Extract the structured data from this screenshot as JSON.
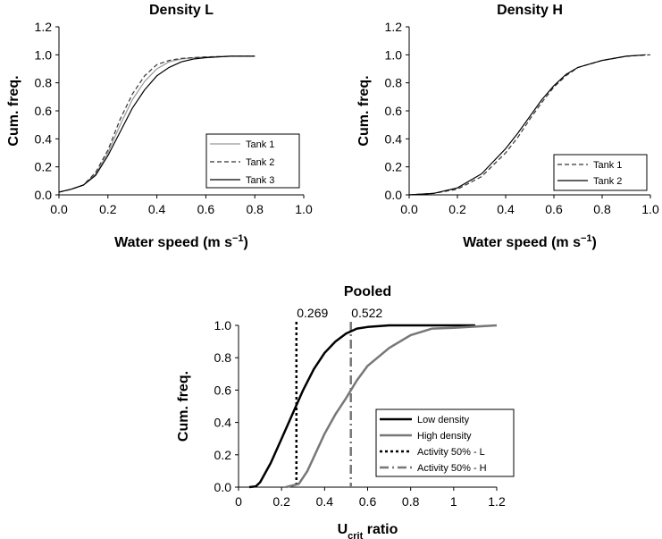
{
  "chart_data": [
    {
      "type": "line",
      "title": "Density L",
      "xlabel": "Water speed (m s",
      "xlabel_sup": "−1",
      "xlabel_end": ")",
      "ylabel": "Cum. freq.",
      "xlim": [
        0,
        1.0
      ],
      "ylim": [
        0,
        1.2
      ],
      "xticks": [
        "0.0",
        "0.2",
        "0.4",
        "0.6",
        "0.8",
        "1.0"
      ],
      "yticks": [
        "0.0",
        "0.2",
        "0.4",
        "0.6",
        "0.8",
        "1.0",
        "1.2"
      ],
      "legend_position": "bottom-right",
      "grid": false,
      "series": [
        {
          "name": "Tank 1",
          "color": "#999999",
          "dash": "none",
          "width": 1.2,
          "points": [
            [
              0,
              0.02
            ],
            [
              0.05,
              0.04
            ],
            [
              0.1,
              0.07
            ],
            [
              0.15,
              0.15
            ],
            [
              0.2,
              0.3
            ],
            [
              0.25,
              0.5
            ],
            [
              0.3,
              0.68
            ],
            [
              0.35,
              0.81
            ],
            [
              0.4,
              0.9
            ],
            [
              0.45,
              0.95
            ],
            [
              0.5,
              0.97
            ],
            [
              0.55,
              0.98
            ],
            [
              0.6,
              0.985
            ],
            [
              0.7,
              0.99
            ],
            [
              0.8,
              0.99
            ]
          ]
        },
        {
          "name": "Tank 2",
          "color": "#333333",
          "dash": "5,3",
          "width": 1.2,
          "points": [
            [
              0,
              0.02
            ],
            [
              0.05,
              0.04
            ],
            [
              0.1,
              0.07
            ],
            [
              0.15,
              0.16
            ],
            [
              0.2,
              0.32
            ],
            [
              0.25,
              0.54
            ],
            [
              0.3,
              0.72
            ],
            [
              0.35,
              0.85
            ],
            [
              0.4,
              0.93
            ],
            [
              0.45,
              0.96
            ],
            [
              0.5,
              0.975
            ],
            [
              0.55,
              0.98
            ],
            [
              0.6,
              0.985
            ],
            [
              0.7,
              0.99
            ],
            [
              0.8,
              0.99
            ]
          ]
        },
        {
          "name": "Tank 3",
          "color": "#000000",
          "dash": "none",
          "width": 1.2,
          "points": [
            [
              0,
              0.02
            ],
            [
              0.05,
              0.04
            ],
            [
              0.1,
              0.07
            ],
            [
              0.15,
              0.14
            ],
            [
              0.2,
              0.28
            ],
            [
              0.25,
              0.45
            ],
            [
              0.3,
              0.62
            ],
            [
              0.35,
              0.75
            ],
            [
              0.4,
              0.85
            ],
            [
              0.45,
              0.91
            ],
            [
              0.5,
              0.95
            ],
            [
              0.55,
              0.97
            ],
            [
              0.6,
              0.98
            ],
            [
              0.7,
              0.99
            ],
            [
              0.8,
              0.99
            ]
          ]
        }
      ]
    },
    {
      "type": "line",
      "title": "Density H",
      "xlabel": "Water speed (m s",
      "xlabel_sup": "−1",
      "xlabel_end": ")",
      "ylabel": "Cum. freq.",
      "xlim": [
        0,
        1.0
      ],
      "ylim": [
        0,
        1.2
      ],
      "xticks": [
        "0.0",
        "0.2",
        "0.4",
        "0.6",
        "0.8",
        "1.0"
      ],
      "yticks": [
        "0.0",
        "0.2",
        "0.4",
        "0.6",
        "0.8",
        "1.0",
        "1.2"
      ],
      "legend_position": "bottom-right",
      "grid": false,
      "series": [
        {
          "name": "Tank 1",
          "color": "#333333",
          "dash": "5,3",
          "width": 1.2,
          "points": [
            [
              0,
              0.0
            ],
            [
              0.1,
              0.01
            ],
            [
              0.2,
              0.04
            ],
            [
              0.3,
              0.13
            ],
            [
              0.4,
              0.3
            ],
            [
              0.45,
              0.41
            ],
            [
              0.5,
              0.54
            ],
            [
              0.55,
              0.66
            ],
            [
              0.6,
              0.77
            ],
            [
              0.65,
              0.85
            ],
            [
              0.7,
              0.91
            ],
            [
              0.8,
              0.96
            ],
            [
              0.9,
              0.99
            ],
            [
              1.0,
              1.0
            ]
          ]
        },
        {
          "name": "Tank 2",
          "color": "#000000",
          "dash": "none",
          "width": 1.2,
          "points": [
            [
              0,
              0.0
            ],
            [
              0.1,
              0.01
            ],
            [
              0.2,
              0.05
            ],
            [
              0.3,
              0.15
            ],
            [
              0.4,
              0.33
            ],
            [
              0.45,
              0.44
            ],
            [
              0.5,
              0.56
            ],
            [
              0.55,
              0.68
            ],
            [
              0.6,
              0.78
            ],
            [
              0.65,
              0.86
            ],
            [
              0.7,
              0.91
            ],
            [
              0.8,
              0.96
            ],
            [
              0.9,
              0.99
            ],
            [
              0.98,
              1.0
            ]
          ]
        }
      ]
    },
    {
      "type": "line",
      "title": "Pooled",
      "xlabel": "U",
      "xlabel_sub": "crit",
      "xlabel_end": " ratio",
      "ylabel": "Cum. freq.",
      "xlim": [
        0,
        1.2
      ],
      "ylim": [
        0,
        1.0
      ],
      "xticks": [
        "0",
        "0.2",
        "0.4",
        "0.6",
        "0.8",
        "1",
        "1.2"
      ],
      "yticks": [
        "0.0",
        "0.2",
        "0.4",
        "0.6",
        "0.8",
        "1.0"
      ],
      "legend_position": "bottom-right",
      "grid": false,
      "series": [
        {
          "name": "Low density",
          "color": "#000000",
          "dash": "none",
          "width": 2.5,
          "points": [
            [
              0.05,
              0.0
            ],
            [
              0.08,
              0.005
            ],
            [
              0.1,
              0.03
            ],
            [
              0.15,
              0.15
            ],
            [
              0.2,
              0.3
            ],
            [
              0.25,
              0.45
            ],
            [
              0.3,
              0.6
            ],
            [
              0.35,
              0.73
            ],
            [
              0.4,
              0.83
            ],
            [
              0.45,
              0.9
            ],
            [
              0.5,
              0.95
            ],
            [
              0.55,
              0.98
            ],
            [
              0.6,
              0.99
            ],
            [
              0.7,
              1.0
            ],
            [
              1.1,
              1.0
            ]
          ]
        },
        {
          "name": "High density",
          "color": "#777777",
          "dash": "none",
          "width": 2.5,
          "points": [
            [
              0.22,
              0.0
            ],
            [
              0.28,
              0.02
            ],
            [
              0.32,
              0.1
            ],
            [
              0.4,
              0.33
            ],
            [
              0.45,
              0.45
            ],
            [
              0.5,
              0.55
            ],
            [
              0.55,
              0.66
            ],
            [
              0.6,
              0.75
            ],
            [
              0.7,
              0.86
            ],
            [
              0.8,
              0.94
            ],
            [
              0.9,
              0.98
            ],
            [
              1.0,
              0.985
            ],
            [
              1.2,
              1.0
            ]
          ]
        }
      ],
      "reference_lines": [
        {
          "name": "Activity 50% -  L",
          "x": 0.269,
          "label": "0.269",
          "color": "#000000",
          "dash": "3,3",
          "width": 2.5
        },
        {
          "name": "Activity 50% - H",
          "x": 0.522,
          "label": "0.522",
          "color": "#777777",
          "dash": "10,4,2,4",
          "width": 2.5
        }
      ]
    }
  ]
}
